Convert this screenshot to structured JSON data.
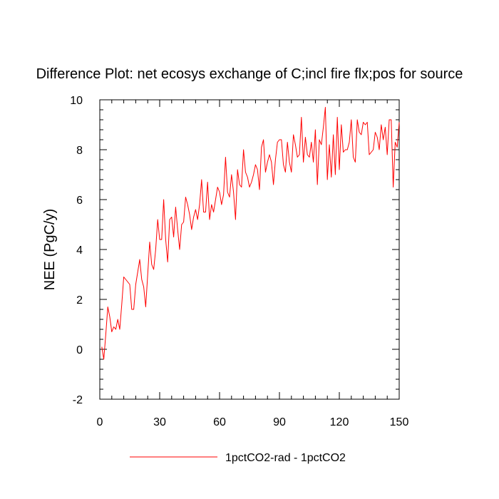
{
  "chart_data": {
    "type": "line",
    "title": "Difference Plot: net ecosys exchange of C;incl fire flx;pos for source",
    "xlabel": "",
    "ylabel": "NEE  (PgC/y)",
    "xlim": [
      0,
      150
    ],
    "ylim": [
      -2,
      10
    ],
    "xticks": [
      0,
      30,
      60,
      90,
      120,
      150
    ],
    "yticks": [
      -2,
      0,
      2,
      4,
      6,
      8,
      10
    ],
    "grid": false,
    "legend_position": "bottom-center",
    "series": [
      {
        "name": "1pctCO2-rad - 1pctCO2",
        "color": "#ff0000",
        "x": [
          1,
          2,
          3,
          4,
          5,
          6,
          7,
          8,
          9,
          10,
          11,
          12,
          13,
          14,
          15,
          16,
          17,
          18,
          19,
          20,
          21,
          22,
          23,
          24,
          25,
          26,
          27,
          28,
          29,
          30,
          31,
          32,
          33,
          34,
          35,
          36,
          37,
          38,
          39,
          40,
          41,
          42,
          43,
          44,
          45,
          46,
          47,
          48,
          49,
          50,
          51,
          52,
          53,
          54,
          55,
          56,
          57,
          58,
          59,
          60,
          61,
          62,
          63,
          64,
          65,
          66,
          67,
          68,
          69,
          70,
          71,
          72,
          73,
          74,
          75,
          76,
          77,
          78,
          79,
          80,
          81,
          82,
          83,
          84,
          85,
          86,
          87,
          88,
          89,
          90,
          91,
          92,
          93,
          94,
          95,
          96,
          97,
          98,
          99,
          100,
          101,
          102,
          103,
          104,
          105,
          106,
          107,
          108,
          109,
          110,
          111,
          112,
          113,
          114,
          115,
          116,
          117,
          118,
          119,
          120,
          121,
          122,
          123,
          124,
          125,
          126,
          127,
          128,
          129,
          130,
          131,
          132,
          133,
          134,
          135,
          136,
          137,
          138,
          139,
          140,
          141,
          142,
          143,
          144,
          145,
          146,
          147,
          148,
          149,
          150
        ],
        "y": [
          0.1,
          -0.4,
          0.6,
          1.7,
          1.3,
          0.7,
          0.9,
          0.8,
          1.2,
          0.8,
          1.8,
          2.9,
          2.8,
          2.7,
          2.6,
          1.6,
          1.6,
          2.6,
          3.1,
          3.6,
          2.8,
          2.5,
          1.7,
          3.0,
          4.3,
          3.4,
          3.2,
          4.0,
          5.2,
          4.4,
          4.4,
          6.0,
          4.4,
          3.5,
          5.2,
          5.3,
          4.5,
          5.7,
          4.8,
          4.0,
          5.0,
          5.1,
          6.1,
          5.8,
          5.4,
          4.8,
          5.3,
          5.6,
          5.2,
          5.8,
          6.8,
          5.5,
          5.5,
          6.7,
          5.2,
          5.8,
          5.5,
          6.0,
          6.5,
          6.3,
          5.8,
          6.2,
          7.7,
          6.3,
          6.1,
          7.0,
          6.3,
          5.2,
          7.2,
          6.6,
          6.5,
          8.0,
          7.1,
          6.9,
          6.5,
          6.7,
          7.0,
          7.4,
          7.2,
          6.4,
          8.1,
          8.4,
          7.1,
          7.5,
          7.8,
          7.5,
          6.6,
          7.6,
          8.3,
          8.4,
          8.4,
          7.4,
          7.1,
          8.3,
          7.5,
          7.1,
          8.6,
          8.2,
          7.7,
          7.8,
          9.3,
          7.5,
          8.5,
          7.8,
          7.7,
          8.3,
          7.5,
          8.8,
          6.6,
          8.4,
          8.2,
          8.9,
          9.7,
          6.8,
          8.2,
          6.9,
          8.6,
          7.0,
          9.3,
          7.2,
          9.0,
          7.9,
          8.0,
          8.0,
          8.3,
          9.2,
          7.7,
          7.5,
          9.2,
          8.7,
          8.6,
          9.1,
          9.0,
          9.1,
          7.8,
          7.9,
          8.0,
          8.7,
          8.5,
          8.0,
          9.0,
          8.4,
          8.9,
          7.8,
          9.2,
          9.2,
          6.5,
          8.3,
          8.1,
          9.1
        ]
      }
    ]
  }
}
